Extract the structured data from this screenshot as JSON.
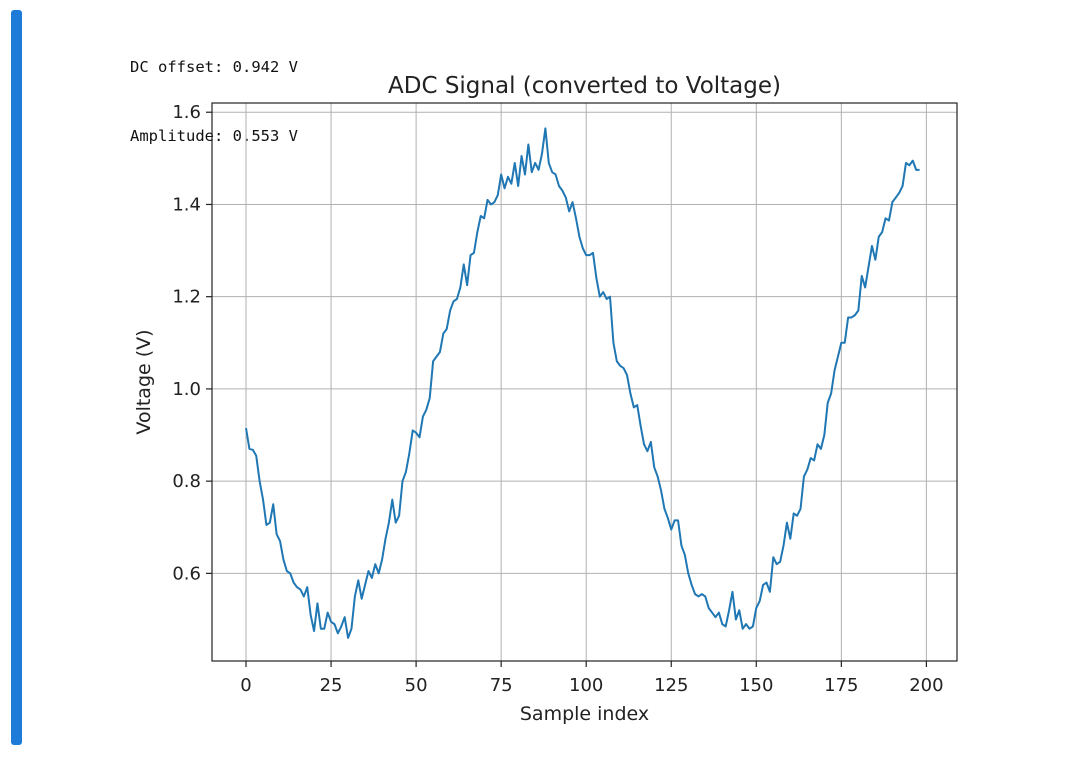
{
  "cell": {
    "accent": "#1e7bd8"
  },
  "output_lines": [
    "DC offset: 0.942 V",
    "Amplitude: 0.553 V"
  ],
  "chart_data": {
    "type": "line",
    "title": "ADC Signal (converted to Voltage)",
    "xlabel": "Sample index",
    "ylabel": "Voltage (V)",
    "xlim": [
      -10,
      209
    ],
    "ylim": [
      0.41,
      1.62
    ],
    "xticks": [
      0,
      25,
      50,
      75,
      100,
      125,
      150,
      175,
      200
    ],
    "yticks": [
      0.6,
      0.8,
      1.0,
      1.2,
      1.4,
      1.6
    ],
    "ytick_labels": [
      "0.6",
      "0.8",
      "1.0",
      "1.2",
      "1.4",
      "1.6"
    ],
    "grid": true,
    "series": [
      {
        "color": "#1f77b4",
        "x_start": 0,
        "x_step": 1,
        "values": [
          0.915,
          0.87,
          0.868,
          0.855,
          0.8,
          0.76,
          0.705,
          0.71,
          0.75,
          0.685,
          0.67,
          0.63,
          0.605,
          0.6,
          0.58,
          0.57,
          0.565,
          0.55,
          0.57,
          0.51,
          0.475,
          0.535,
          0.48,
          0.48,
          0.515,
          0.495,
          0.49,
          0.47,
          0.485,
          0.505,
          0.46,
          0.48,
          0.55,
          0.585,
          0.545,
          0.575,
          0.605,
          0.59,
          0.62,
          0.6,
          0.63,
          0.675,
          0.71,
          0.76,
          0.71,
          0.725,
          0.8,
          0.82,
          0.86,
          0.91,
          0.905,
          0.895,
          0.94,
          0.955,
          0.98,
          1.06,
          1.07,
          1.08,
          1.12,
          1.13,
          1.17,
          1.19,
          1.195,
          1.22,
          1.27,
          1.225,
          1.29,
          1.295,
          1.34,
          1.375,
          1.37,
          1.41,
          1.4,
          1.405,
          1.42,
          1.465,
          1.435,
          1.46,
          1.445,
          1.49,
          1.44,
          1.505,
          1.465,
          1.53,
          1.47,
          1.49,
          1.475,
          1.51,
          1.565,
          1.49,
          1.47,
          1.465,
          1.44,
          1.43,
          1.415,
          1.385,
          1.405,
          1.37,
          1.33,
          1.305,
          1.29,
          1.29,
          1.295,
          1.24,
          1.2,
          1.21,
          1.195,
          1.2,
          1.1,
          1.06,
          1.05,
          1.045,
          1.03,
          0.99,
          0.96,
          0.965,
          0.92,
          0.88,
          0.865,
          0.885,
          0.83,
          0.81,
          0.78,
          0.74,
          0.72,
          0.695,
          0.715,
          0.715,
          0.66,
          0.64,
          0.6,
          0.575,
          0.555,
          0.55,
          0.555,
          0.55,
          0.525,
          0.515,
          0.505,
          0.515,
          0.49,
          0.485,
          0.52,
          0.56,
          0.5,
          0.52,
          0.48,
          0.49,
          0.48,
          0.485,
          0.525,
          0.54,
          0.575,
          0.58,
          0.56,
          0.635,
          0.62,
          0.625,
          0.66,
          0.71,
          0.675,
          0.73,
          0.725,
          0.74,
          0.81,
          0.825,
          0.85,
          0.845,
          0.88,
          0.87,
          0.9,
          0.97,
          0.99,
          1.04,
          1.07,
          1.1,
          1.1,
          1.155,
          1.155,
          1.16,
          1.17,
          1.245,
          1.22,
          1.265,
          1.31,
          1.28,
          1.33,
          1.34,
          1.37,
          1.365,
          1.405,
          1.415,
          1.425,
          1.44,
          1.49,
          1.485,
          1.495,
          1.475,
          1.475
        ]
      }
    ]
  }
}
